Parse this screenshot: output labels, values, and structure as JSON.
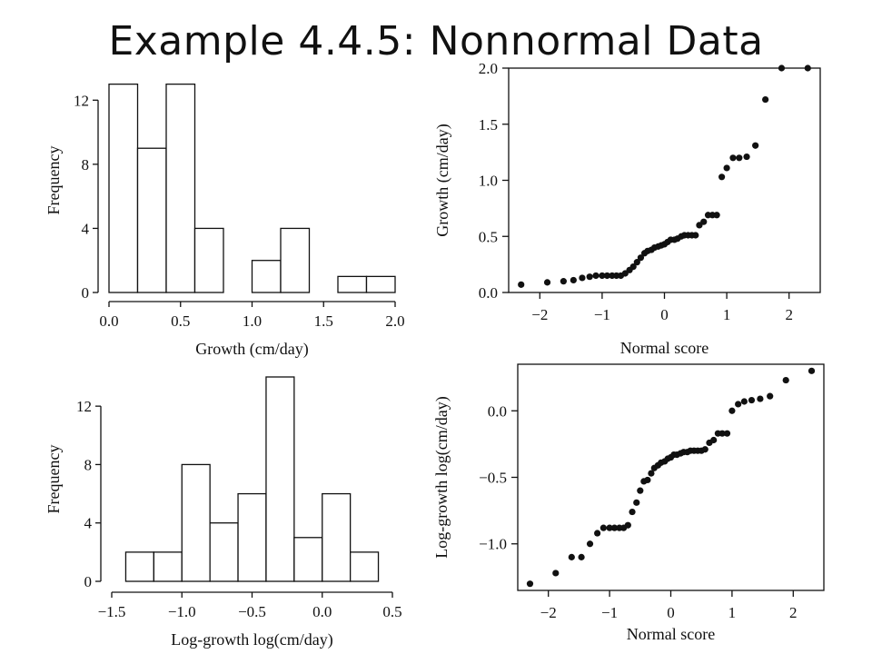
{
  "slide": {
    "title": "Example 4.4.5: Nonnormal Data"
  },
  "chart_data": [
    {
      "type": "bar",
      "panel": "top-left histogram",
      "xlabel": "Growth (cm/day)",
      "ylabel": "Frequency",
      "xlim": [
        0.0,
        2.0
      ],
      "ylim": [
        0,
        14
      ],
      "xticks": [
        "0.0",
        "0.5",
        "1.0",
        "1.5",
        "2.0"
      ],
      "yticks": [
        "0",
        "4",
        "8",
        "12"
      ],
      "bins": [
        {
          "x0": 0.0,
          "x1": 0.2,
          "count": 13
        },
        {
          "x0": 0.2,
          "x1": 0.4,
          "count": 9
        },
        {
          "x0": 0.4,
          "x1": 0.6,
          "count": 13
        },
        {
          "x0": 0.6,
          "x1": 0.8,
          "count": 4
        },
        {
          "x0": 0.8,
          "x1": 1.0,
          "count": 0
        },
        {
          "x0": 1.0,
          "x1": 1.2,
          "count": 2
        },
        {
          "x0": 1.2,
          "x1": 1.4,
          "count": 4
        },
        {
          "x0": 1.4,
          "x1": 1.6,
          "count": 0
        },
        {
          "x0": 1.6,
          "x1": 1.8,
          "count": 1
        },
        {
          "x0": 1.8,
          "x1": 2.0,
          "count": 1
        }
      ]
    },
    {
      "type": "scatter",
      "panel": "top-right normal probability plot",
      "xlabel": "Normal score",
      "ylabel": "Growth (cm/day)",
      "xlim": [
        -2.5,
        2.5
      ],
      "ylim": [
        0.0,
        2.0
      ],
      "xticks": [
        "−2",
        "−1",
        "0",
        "1",
        "2"
      ],
      "yticks": [
        "0.0",
        "0.5",
        "1.0",
        "1.5",
        "2.0"
      ],
      "x": [
        -2.3,
        -1.88,
        -1.62,
        -1.46,
        -1.32,
        -1.2,
        -1.1,
        -1.0,
        -0.92,
        -0.84,
        -0.77,
        -0.7,
        -0.63,
        -0.56,
        -0.5,
        -0.44,
        -0.38,
        -0.32,
        -0.27,
        -0.21,
        -0.16,
        -0.1,
        -0.05,
        0.0,
        0.05,
        0.1,
        0.16,
        0.21,
        0.27,
        0.32,
        0.38,
        0.44,
        0.5,
        0.56,
        0.63,
        0.7,
        0.77,
        0.84,
        0.92,
        1.0,
        1.1,
        1.2,
        1.32,
        1.46,
        1.62,
        1.88,
        2.3
      ],
      "y": [
        0.07,
        0.09,
        0.1,
        0.11,
        0.13,
        0.14,
        0.15,
        0.15,
        0.15,
        0.15,
        0.15,
        0.15,
        0.17,
        0.2,
        0.23,
        0.27,
        0.31,
        0.35,
        0.37,
        0.38,
        0.4,
        0.41,
        0.42,
        0.43,
        0.45,
        0.47,
        0.47,
        0.48,
        0.5,
        0.51,
        0.51,
        0.51,
        0.51,
        0.6,
        0.63,
        0.69,
        0.69,
        0.69,
        1.03,
        1.11,
        1.2,
        1.2,
        1.21,
        1.31,
        1.72,
        2.0,
        2.0
      ]
    },
    {
      "type": "bar",
      "panel": "bottom-left histogram",
      "xlabel": "Log-growth log(cm/day)",
      "ylabel": "Frequency",
      "xlim": [
        -1.5,
        0.5
      ],
      "ylim": [
        0,
        14
      ],
      "xticks": [
        "−1.5",
        "−1.0",
        "−0.5",
        "0.0",
        "0.5"
      ],
      "yticks": [
        "0",
        "4",
        "8",
        "12"
      ],
      "bins": [
        {
          "x0": -1.4,
          "x1": -1.2,
          "count": 2
        },
        {
          "x0": -1.2,
          "x1": -1.0,
          "count": 2
        },
        {
          "x0": -1.0,
          "x1": -0.8,
          "count": 8
        },
        {
          "x0": -0.8,
          "x1": -0.6,
          "count": 4
        },
        {
          "x0": -0.6,
          "x1": -0.4,
          "count": 6
        },
        {
          "x0": -0.4,
          "x1": -0.2,
          "count": 14
        },
        {
          "x0": -0.2,
          "x1": 0.0,
          "count": 3
        },
        {
          "x0": 0.0,
          "x1": 0.2,
          "count": 6
        },
        {
          "x0": 0.2,
          "x1": 0.4,
          "count": 2
        }
      ]
    },
    {
      "type": "scatter",
      "panel": "bottom-right normal probability plot",
      "xlabel": "Normal score",
      "ylabel": "Log-growth log(cm/day)",
      "xlim": [
        -2.5,
        2.5
      ],
      "ylim": [
        -1.35,
        0.35
      ],
      "xticks": [
        "−2",
        "−1",
        "0",
        "1",
        "2"
      ],
      "yticks": [
        "−1.0",
        "−0.5",
        "0.0"
      ],
      "x": [
        -2.3,
        -1.88,
        -1.62,
        -1.46,
        -1.32,
        -1.2,
        -1.1,
        -1.0,
        -0.92,
        -0.84,
        -0.77,
        -0.7,
        -0.63,
        -0.56,
        -0.5,
        -0.44,
        -0.38,
        -0.32,
        -0.27,
        -0.21,
        -0.16,
        -0.1,
        -0.05,
        0.0,
        0.05,
        0.1,
        0.16,
        0.21,
        0.27,
        0.32,
        0.38,
        0.44,
        0.5,
        0.56,
        0.63,
        0.7,
        0.77,
        0.84,
        0.92,
        1.0,
        1.1,
        1.2,
        1.32,
        1.46,
        1.62,
        1.88,
        2.3
      ],
      "y": [
        -1.3,
        -1.22,
        -1.1,
        -1.1,
        -1.0,
        -0.92,
        -0.88,
        -0.88,
        -0.88,
        -0.88,
        -0.88,
        -0.86,
        -0.76,
        -0.69,
        -0.6,
        -0.53,
        -0.52,
        -0.47,
        -0.43,
        -0.41,
        -0.39,
        -0.38,
        -0.36,
        -0.35,
        -0.33,
        -0.33,
        -0.32,
        -0.31,
        -0.31,
        -0.3,
        -0.3,
        -0.3,
        -0.3,
        -0.29,
        -0.24,
        -0.22,
        -0.17,
        -0.17,
        -0.17,
        0.0,
        0.05,
        0.07,
        0.08,
        0.09,
        0.11,
        0.23,
        0.3
      ]
    }
  ]
}
